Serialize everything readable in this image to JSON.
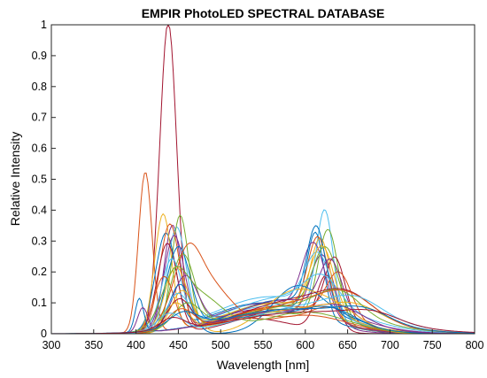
{
  "chart_data": {
    "type": "line",
    "title": "EMPIR PhotoLED SPECTRAL DATABASE",
    "xlabel": "Wavelength [nm]",
    "ylabel": "Relative Intensity",
    "xlim": [
      300,
      800
    ],
    "ylim": [
      0,
      1
    ],
    "xticks": [
      "300",
      "350",
      "400",
      "450",
      "500",
      "550",
      "600",
      "650",
      "700",
      "750",
      "800"
    ],
    "yticks": [
      "0",
      "0.1",
      "0.2",
      "0.3",
      "0.4",
      "0.5",
      "0.6",
      "0.7",
      "0.8",
      "0.9",
      "1"
    ],
    "grid": false,
    "legend": "none",
    "series": [
      {
        "color": "#A2142F",
        "blue": [
          438,
          1.0,
          10
        ],
        "green": [
          535,
          0.05,
          50
        ],
        "red": [
          625,
          0.18,
          12
        ]
      },
      {
        "color": "#D95319",
        "blue": [
          411,
          0.52,
          8
        ],
        "green": [
          540,
          0.06,
          55
        ],
        "red": [
          630,
          0.07,
          25
        ]
      },
      {
        "color": "#7E2F8E",
        "blue": [
          443,
          0.34,
          10
        ],
        "green": [
          550,
          0.08,
          55
        ],
        "red": [
          620,
          0.22,
          14
        ]
      },
      {
        "color": "#4DBEEE",
        "blue": [
          448,
          0.33,
          11
        ],
        "green": [
          560,
          0.09,
          60
        ],
        "red": [
          623,
          0.35,
          10
        ]
      },
      {
        "color": "#77AC30",
        "blue": [
          452,
          0.37,
          10
        ],
        "green": [
          560,
          0.07,
          60
        ],
        "red": [
          627,
          0.3,
          12
        ]
      },
      {
        "color": "#0072BD",
        "blue": [
          435,
          0.31,
          12
        ],
        "green": [
          550,
          0.1,
          60
        ],
        "red": [
          612,
          0.27,
          10
        ]
      },
      {
        "color": "#EDB120",
        "blue": [
          432,
          0.38,
          10
        ],
        "green": [
          560,
          0.08,
          60
        ],
        "red": [
          618,
          0.26,
          12
        ]
      },
      {
        "color": "#D95319",
        "blue": [
          440,
          0.35,
          12
        ],
        "green": [
          570,
          0.09,
          55
        ],
        "red": [
          615,
          0.25,
          12
        ]
      },
      {
        "color": "#7E2F8E",
        "blue": [
          445,
          0.3,
          12
        ],
        "green": [
          555,
          0.1,
          60
        ],
        "red": [
          610,
          0.23,
          14
        ]
      },
      {
        "color": "#A2142F",
        "blue": [
          437,
          0.29,
          12
        ],
        "green": [
          580,
          0.08,
          55
        ],
        "red": [
          635,
          0.2,
          12
        ]
      },
      {
        "color": "#0072BD",
        "blue": [
          450,
          0.27,
          14
        ],
        "green": [
          575,
          0.11,
          60
        ],
        "red": [
          613,
          0.26,
          11
        ]
      },
      {
        "color": "#77AC30",
        "blue": [
          455,
          0.24,
          14
        ],
        "green": [
          565,
          0.1,
          60
        ],
        "red": [
          624,
          0.22,
          15
        ]
      },
      {
        "color": "#4DBEEE",
        "blue": [
          442,
          0.22,
          12
        ],
        "green": [
          560,
          0.12,
          65
        ],
        "red": [
          615,
          0.18,
          15
        ]
      },
      {
        "color": "#EDB120",
        "blue": [
          447,
          0.2,
          13
        ],
        "green": [
          570,
          0.1,
          65
        ],
        "red": [
          620,
          0.21,
          14
        ]
      },
      {
        "color": "#D95319",
        "blue": [
          433,
          0.18,
          12
        ],
        "green": [
          575,
          0.09,
          60
        ],
        "red": [
          640,
          0.15,
          15
        ]
      },
      {
        "color": "#7E2F8E",
        "blue": [
          458,
          0.17,
          15
        ],
        "green": [
          580,
          0.11,
          65
        ],
        "red": [
          630,
          0.16,
          13
        ]
      },
      {
        "color": "#0072BD",
        "blue": [
          452,
          0.16,
          13
        ],
        "green": [
          590,
          0.15,
          30
        ],
        "red": [
          650,
          0.04,
          30
        ]
      },
      {
        "color": "#D95319",
        "blue": [
          460,
          0.15,
          15
        ],
        "green": [
          480,
          0.17,
          30
        ],
        "red": [
          600,
          0.06,
          50
        ]
      },
      {
        "color": "#EDB120",
        "blue": [
          455,
          0.14,
          14
        ],
        "green": [
          585,
          0.13,
          35
        ],
        "red": [
          640,
          0.06,
          30
        ]
      },
      {
        "color": "#77AC30",
        "blue": [
          445,
          0.12,
          14
        ],
        "green": [
          470,
          0.13,
          30
        ],
        "red": [
          600,
          0.07,
          50
        ]
      },
      {
        "color": "#4DBEEE",
        "blue": [
          449,
          0.11,
          13
        ],
        "green": [
          580,
          0.12,
          70
        ],
        "red": [
          620,
          0.09,
          20
        ]
      },
      {
        "color": "#A2142F",
        "blue": [
          451,
          0.1,
          14
        ],
        "green": [
          595,
          0.11,
          70
        ],
        "red": [
          650,
          0.06,
          30
        ]
      },
      {
        "color": "#0072BD",
        "blue": [
          404,
          0.11,
          5
        ],
        "green": [
          560,
          0.06,
          70
        ],
        "red": [
          630,
          0.05,
          30
        ]
      },
      {
        "color": "#7E2F8E",
        "blue": [
          408,
          0.08,
          6
        ],
        "green": [
          570,
          0.07,
          70
        ],
        "red": [
          640,
          0.05,
          30
        ]
      },
      {
        "color": "#EDB120",
        "blue": [
          447,
          0.09,
          14
        ],
        "green": [
          600,
          0.08,
          75
        ],
        "red": [
          660,
          0.04,
          30
        ]
      },
      {
        "color": "#77AC30",
        "blue": [
          460,
          0.08,
          16
        ],
        "green": [
          590,
          0.09,
          75
        ],
        "red": [
          640,
          0.07,
          25
        ]
      },
      {
        "color": "#D95319",
        "blue": [
          453,
          0.07,
          16
        ],
        "green": [
          600,
          0.1,
          70
        ],
        "red": [
          650,
          0.06,
          30
        ]
      },
      {
        "color": "#4DBEEE",
        "blue": [
          440,
          0.06,
          15
        ],
        "green": [
          610,
          0.09,
          75
        ],
        "red": [
          660,
          0.05,
          30
        ]
      },
      {
        "color": "#0072BD",
        "blue": [
          456,
          0.05,
          17
        ],
        "green": [
          585,
          0.08,
          80
        ],
        "red": [
          670,
          0.04,
          30
        ]
      },
      {
        "color": "#A2142F",
        "blue": [
          443,
          0.04,
          15
        ],
        "green": [
          600,
          0.07,
          85
        ],
        "red": [
          680,
          0.03,
          30
        ]
      }
    ]
  }
}
